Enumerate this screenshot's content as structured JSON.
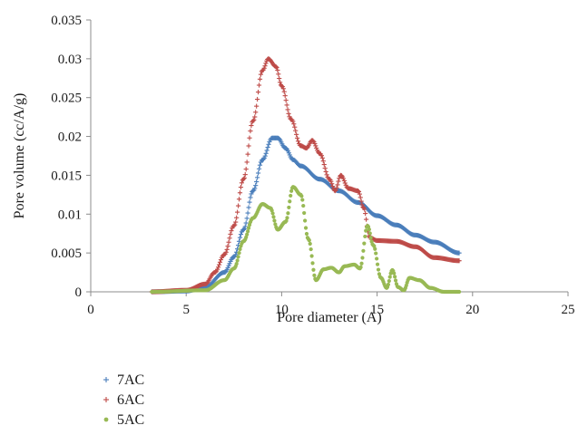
{
  "chart_data": {
    "type": "scatter",
    "title": "",
    "xlabel": "Pore diameter (A)",
    "ylabel": "Pore volume (cc/A/g)",
    "xlim": [
      0,
      25
    ],
    "ylim": [
      0,
      0.035
    ],
    "x_ticks": [
      "0",
      "5",
      "10",
      "15",
      "20",
      "25"
    ],
    "y_ticks": [
      "0",
      "0.005",
      "0.01",
      "0.015",
      "0.02",
      "0.025",
      "0.03",
      "0.035"
    ],
    "grid": false,
    "legend_position": "bottom-left",
    "series": [
      {
        "name": "7AC",
        "color": "#4a7ebb",
        "marker": "plus",
        "points": [
          [
            3.2,
            0
          ],
          [
            5,
            0.0001
          ],
          [
            6,
            0.0006
          ],
          [
            7,
            0.0025
          ],
          [
            7.5,
            0.0045
          ],
          [
            8,
            0.008
          ],
          [
            8.5,
            0.013
          ],
          [
            9,
            0.017
          ],
          [
            9.5,
            0.0198
          ],
          [
            9.8,
            0.0198
          ],
          [
            10.2,
            0.0185
          ],
          [
            10.6,
            0.017
          ],
          [
            11,
            0.0162
          ],
          [
            12,
            0.0145
          ],
          [
            13,
            0.013
          ],
          [
            14,
            0.0115
          ],
          [
            15,
            0.0098
          ],
          [
            16,
            0.0086
          ],
          [
            17,
            0.0073
          ],
          [
            18,
            0.0064
          ],
          [
            19.3,
            0.005
          ]
        ]
      },
      {
        "name": "6AC",
        "color": "#be4b48",
        "marker": "plus",
        "points": [
          [
            3.2,
            0
          ],
          [
            5,
            0.0002
          ],
          [
            6,
            0.001
          ],
          [
            6.5,
            0.0025
          ],
          [
            7,
            0.0048
          ],
          [
            7.5,
            0.0085
          ],
          [
            8,
            0.0145
          ],
          [
            8.5,
            0.022
          ],
          [
            9,
            0.0285
          ],
          [
            9.3,
            0.03
          ],
          [
            9.7,
            0.029
          ],
          [
            10,
            0.0265
          ],
          [
            10.5,
            0.0222
          ],
          [
            11,
            0.0188
          ],
          [
            11.3,
            0.0185
          ],
          [
            11.6,
            0.0195
          ],
          [
            12,
            0.0178
          ],
          [
            12.5,
            0.0145
          ],
          [
            12.8,
            0.013
          ],
          [
            13.1,
            0.015
          ],
          [
            13.5,
            0.0133
          ],
          [
            14,
            0.013
          ],
          [
            14.3,
            0.0108
          ],
          [
            14.6,
            0.007
          ],
          [
            15,
            0.0066
          ],
          [
            16,
            0.0065
          ],
          [
            17,
            0.0058
          ],
          [
            18,
            0.0044
          ],
          [
            19.3,
            0.004
          ]
        ]
      },
      {
        "name": "5AC",
        "color": "#98b954",
        "marker": "dot",
        "points": [
          [
            3.2,
            0
          ],
          [
            6,
            0.0002
          ],
          [
            7,
            0.0015
          ],
          [
            7.5,
            0.003
          ],
          [
            8,
            0.0065
          ],
          [
            8.5,
            0.0095
          ],
          [
            9,
            0.0113
          ],
          [
            9.4,
            0.0108
          ],
          [
            9.8,
            0.008
          ],
          [
            10.2,
            0.009
          ],
          [
            10.6,
            0.0135
          ],
          [
            11,
            0.0125
          ],
          [
            11.4,
            0.0068
          ],
          [
            11.8,
            0.0015
          ],
          [
            12.2,
            0.0029
          ],
          [
            12.6,
            0.0031
          ],
          [
            13,
            0.0025
          ],
          [
            13.3,
            0.0033
          ],
          [
            13.8,
            0.0035
          ],
          [
            14.1,
            0.003
          ],
          [
            14.5,
            0.0085
          ],
          [
            14.8,
            0.006
          ],
          [
            15.2,
            0.0018
          ],
          [
            15.5,
            0.0005
          ],
          [
            15.8,
            0.0028
          ],
          [
            16.1,
            0.0006
          ],
          [
            16.4,
            0.0002
          ],
          [
            16.7,
            0.0018
          ],
          [
            17.2,
            0.0015
          ],
          [
            17.8,
            0.0005
          ],
          [
            18.5,
            0
          ],
          [
            19.3,
            0
          ]
        ]
      }
    ]
  }
}
